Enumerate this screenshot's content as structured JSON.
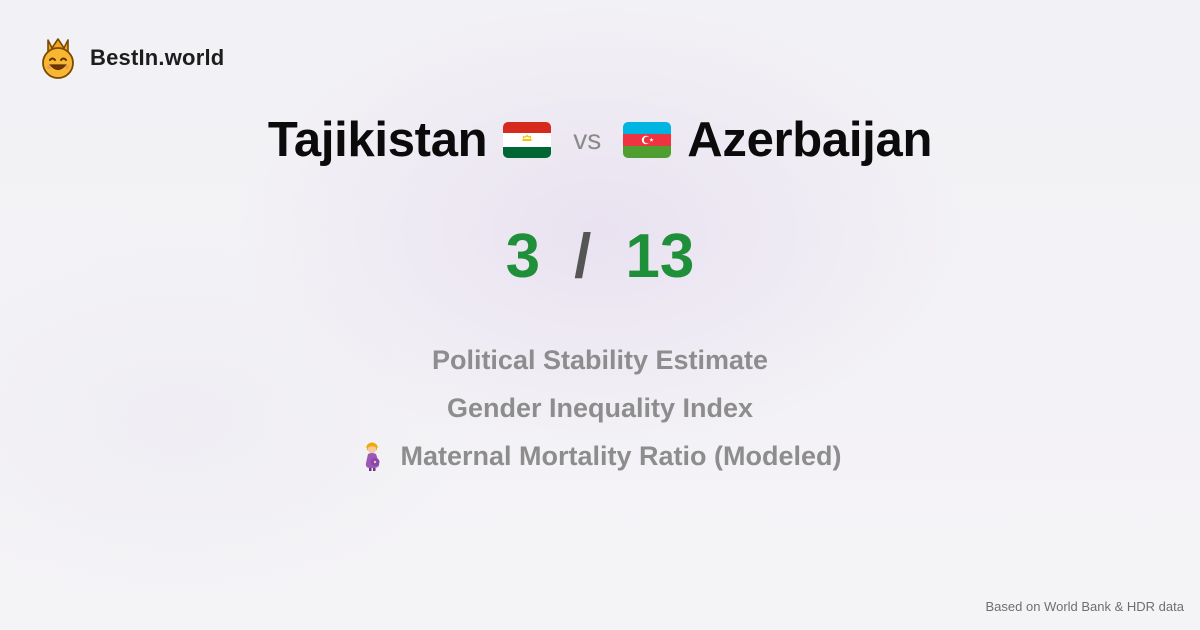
{
  "brand": {
    "name": "BestIn.world",
    "logo_icon": "crowned-smiley-icon"
  },
  "comparison": {
    "left_country": "Tajikistan",
    "left_flag_icon": "tajikistan-flag-icon",
    "vs_label": "vs",
    "right_country": "Azerbaijan",
    "right_flag_icon": "azerbaijan-flag-icon"
  },
  "scores": {
    "left": "3",
    "separator": "/",
    "right": "13",
    "color": "#1f8f3a"
  },
  "metrics": [
    {
      "label": "Political Stability Estimate"
    },
    {
      "label": "Gender Inequality Index"
    },
    {
      "label": "Maternal Mortality Ratio (Modeled)",
      "icon": "pregnant-woman-icon"
    }
  ],
  "footer": {
    "source": "Based on World Bank & HDR data"
  }
}
